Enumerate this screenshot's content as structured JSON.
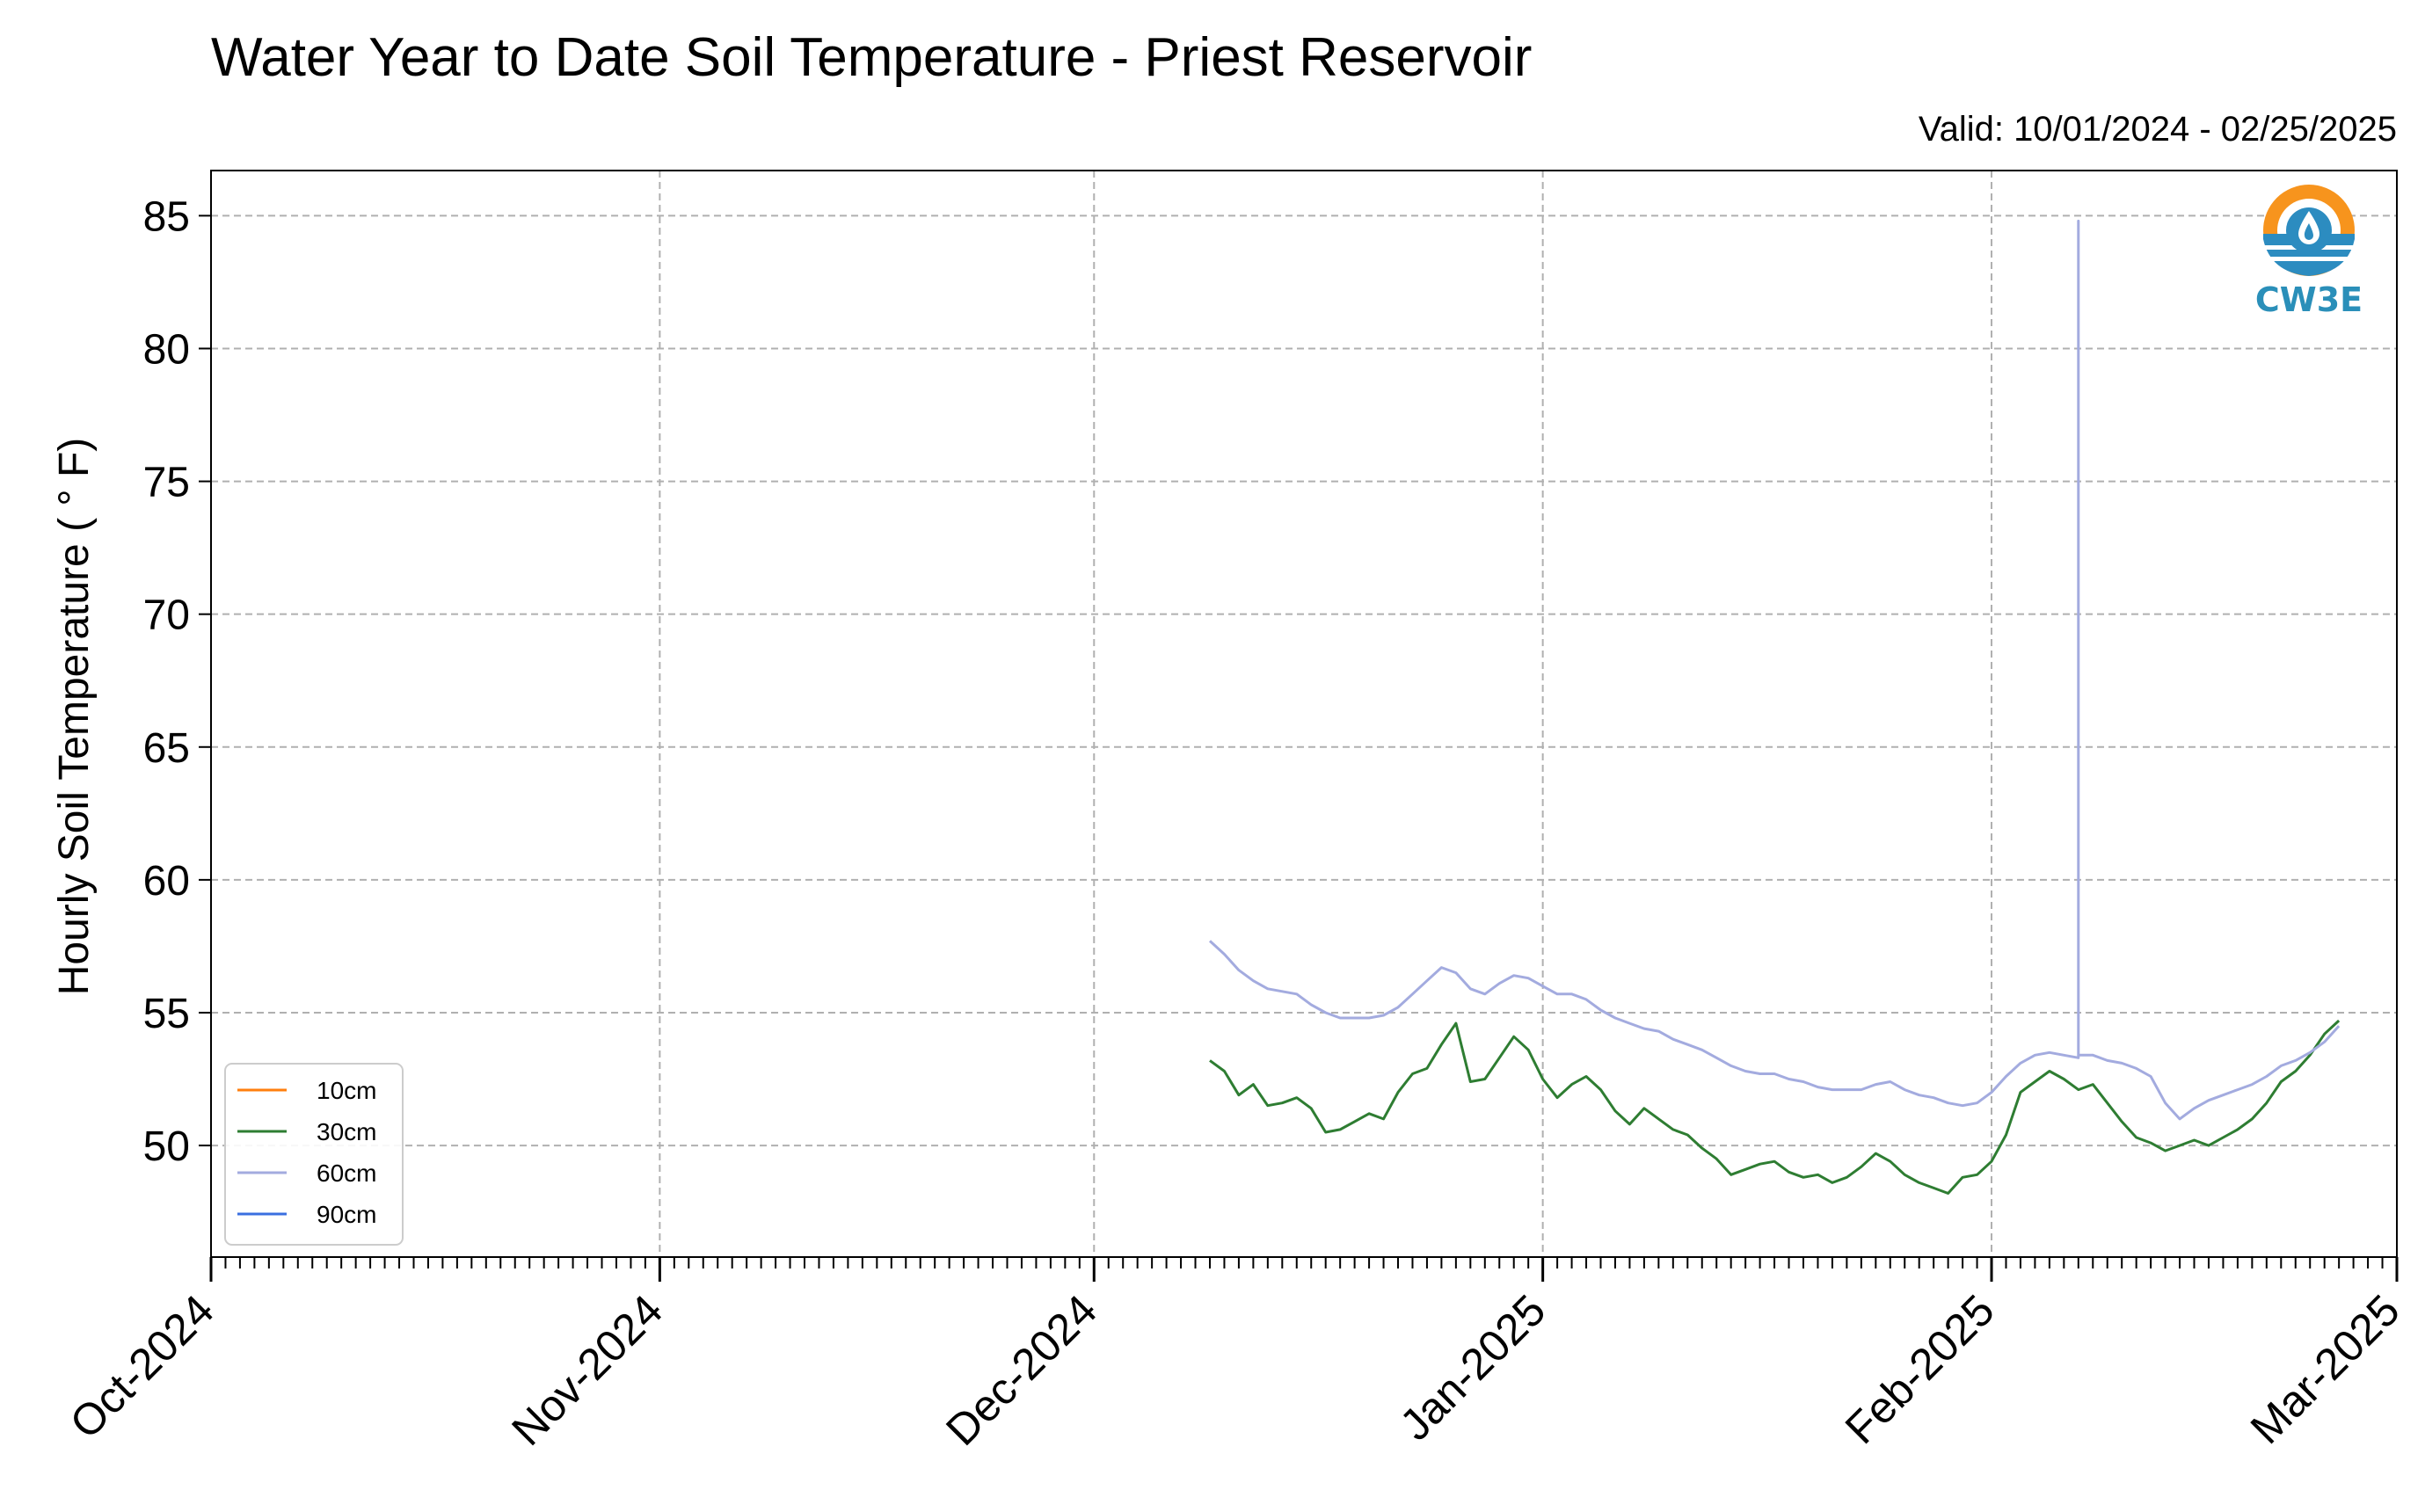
{
  "chart_data": {
    "type": "line",
    "title": "Water Year to Date Soil Temperature - Priest Reservoir",
    "subtitle": "Valid: 10/01/2024 - 02/25/2025",
    "ylabel": "Hourly Soil Temperature ( ° F)",
    "xlabel": "",
    "xlim": [
      "2024-10-01",
      "2025-03-01"
    ],
    "ylim": [
      45.8,
      86.7
    ],
    "yticks": [
      50,
      55,
      60,
      65,
      70,
      75,
      80,
      85
    ],
    "ytick_labels": [
      "50",
      "55",
      "60",
      "65",
      "70",
      "75",
      "80",
      "85"
    ],
    "xticks": [
      "2024-10-01",
      "2024-11-01",
      "2024-12-01",
      "2025-01-01",
      "2025-02-01",
      "2025-03-01"
    ],
    "xtick_labels": [
      "Oct-2024",
      "Nov-2024",
      "Dec-2024",
      "Jan-2025",
      "Feb-2025",
      "Mar-2025"
    ],
    "grid": true,
    "legend_position": "lower-left",
    "series": [
      {
        "name": "10cm",
        "color": "#ff7f0e",
        "x": [],
        "y": []
      },
      {
        "name": "30cm",
        "color": "#2e7d32",
        "x": [
          "2024-12-09",
          "2024-12-10",
          "2024-12-11",
          "2024-12-12",
          "2024-12-13",
          "2024-12-14",
          "2024-12-15",
          "2024-12-16",
          "2024-12-17",
          "2024-12-18",
          "2024-12-19",
          "2024-12-20",
          "2024-12-21",
          "2024-12-22",
          "2024-12-23",
          "2024-12-24",
          "2024-12-25",
          "2024-12-26",
          "2024-12-27",
          "2024-12-28",
          "2024-12-29",
          "2024-12-30",
          "2024-12-31",
          "2025-01-01",
          "2025-01-02",
          "2025-01-03",
          "2025-01-04",
          "2025-01-05",
          "2025-01-06",
          "2025-01-07",
          "2025-01-08",
          "2025-01-09",
          "2025-01-10",
          "2025-01-11",
          "2025-01-12",
          "2025-01-13",
          "2025-01-14",
          "2025-01-15",
          "2025-01-16",
          "2025-01-17",
          "2025-01-18",
          "2025-01-19",
          "2025-01-20",
          "2025-01-21",
          "2025-01-22",
          "2025-01-23",
          "2025-01-24",
          "2025-01-25",
          "2025-01-26",
          "2025-01-27",
          "2025-01-28",
          "2025-01-29",
          "2025-01-30",
          "2025-01-31",
          "2025-02-01",
          "2025-02-02",
          "2025-02-03",
          "2025-02-04",
          "2025-02-05",
          "2025-02-06",
          "2025-02-07",
          "2025-02-08",
          "2025-02-09",
          "2025-02-10",
          "2025-02-11",
          "2025-02-12",
          "2025-02-13",
          "2025-02-14",
          "2025-02-15",
          "2025-02-16",
          "2025-02-17",
          "2025-02-18",
          "2025-02-19",
          "2025-02-20",
          "2025-02-21",
          "2025-02-22",
          "2025-02-23",
          "2025-02-24",
          "2025-02-25"
        ],
        "y": [
          53.2,
          52.8,
          51.9,
          52.3,
          51.5,
          51.6,
          51.8,
          51.4,
          50.5,
          50.6,
          50.9,
          51.2,
          51.0,
          52.0,
          52.7,
          52.9,
          53.8,
          54.6,
          52.4,
          52.5,
          53.3,
          54.1,
          53.6,
          52.5,
          51.8,
          52.3,
          52.6,
          52.1,
          51.3,
          50.8,
          51.4,
          51.0,
          50.6,
          50.4,
          49.9,
          49.5,
          48.9,
          49.1,
          49.3,
          49.4,
          49.0,
          48.8,
          48.9,
          48.6,
          48.8,
          49.2,
          49.7,
          49.4,
          48.9,
          48.6,
          48.4,
          48.2,
          48.8,
          48.9,
          49.4,
          50.4,
          52.0,
          52.4,
          52.8,
          52.5,
          52.1,
          52.3,
          51.6,
          50.9,
          50.3,
          50.1,
          49.8,
          50.0,
          50.2,
          50.0,
          50.3,
          50.6,
          51.0,
          51.6,
          52.4,
          52.8,
          53.4,
          54.2,
          54.7
        ]
      },
      {
        "name": "60cm",
        "color": "#a3abdf",
        "x": [
          "2024-12-09",
          "2024-12-10",
          "2024-12-11",
          "2024-12-12",
          "2024-12-13",
          "2024-12-14",
          "2024-12-15",
          "2024-12-16",
          "2024-12-17",
          "2024-12-18",
          "2024-12-19",
          "2024-12-20",
          "2024-12-21",
          "2024-12-22",
          "2024-12-23",
          "2024-12-24",
          "2024-12-25",
          "2024-12-26",
          "2024-12-27",
          "2024-12-28",
          "2024-12-29",
          "2024-12-30",
          "2024-12-31",
          "2025-01-01",
          "2025-01-02",
          "2025-01-03",
          "2025-01-04",
          "2025-01-05",
          "2025-01-06",
          "2025-01-07",
          "2025-01-08",
          "2025-01-09",
          "2025-01-10",
          "2025-01-11",
          "2025-01-12",
          "2025-01-13",
          "2025-01-14",
          "2025-01-15",
          "2025-01-16",
          "2025-01-17",
          "2025-01-18",
          "2025-01-19",
          "2025-01-20",
          "2025-01-21",
          "2025-01-22",
          "2025-01-23",
          "2025-01-24",
          "2025-01-25",
          "2025-01-26",
          "2025-01-27",
          "2025-01-28",
          "2025-01-29",
          "2025-01-30",
          "2025-01-31",
          "2025-02-01",
          "2025-02-02",
          "2025-02-03",
          "2025-02-04",
          "2025-02-05",
          "2025-02-06",
          "2025-02-07",
          "2025-02-07",
          "2025-02-07",
          "2025-02-08",
          "2025-02-09",
          "2025-02-10",
          "2025-02-11",
          "2025-02-12",
          "2025-02-13",
          "2025-02-14",
          "2025-02-15",
          "2025-02-16",
          "2025-02-17",
          "2025-02-18",
          "2025-02-19",
          "2025-02-20",
          "2025-02-21",
          "2025-02-22",
          "2025-02-23",
          "2025-02-24",
          "2025-02-25"
        ],
        "y": [
          57.7,
          57.2,
          56.6,
          56.2,
          55.9,
          55.8,
          55.7,
          55.3,
          55.0,
          54.8,
          54.8,
          54.8,
          54.9,
          55.2,
          55.7,
          56.2,
          56.7,
          56.5,
          55.9,
          55.7,
          56.1,
          56.4,
          56.3,
          56.0,
          55.7,
          55.7,
          55.5,
          55.1,
          54.8,
          54.6,
          54.4,
          54.3,
          54.0,
          53.8,
          53.6,
          53.3,
          53.0,
          52.8,
          52.7,
          52.7,
          52.5,
          52.4,
          52.2,
          52.1,
          52.1,
          52.1,
          52.3,
          52.4,
          52.1,
          51.9,
          51.8,
          51.6,
          51.5,
          51.6,
          52.0,
          52.6,
          53.1,
          53.4,
          53.5,
          53.4,
          53.3,
          84.8,
          53.4,
          53.4,
          53.2,
          53.1,
          52.9,
          52.6,
          51.6,
          51.0,
          51.4,
          51.7,
          51.9,
          52.1,
          52.3,
          52.6,
          53.0,
          53.2,
          53.5,
          53.9,
          54.5
        ]
      },
      {
        "name": "90cm",
        "color": "#3a6fe0",
        "x": [],
        "y": []
      }
    ]
  },
  "logo": {
    "text": "CW3E",
    "colors": {
      "sun": "#f7941d",
      "wave": "#2c8cc0",
      "drop": "#ffffff",
      "text": "#2a8fb9"
    }
  }
}
